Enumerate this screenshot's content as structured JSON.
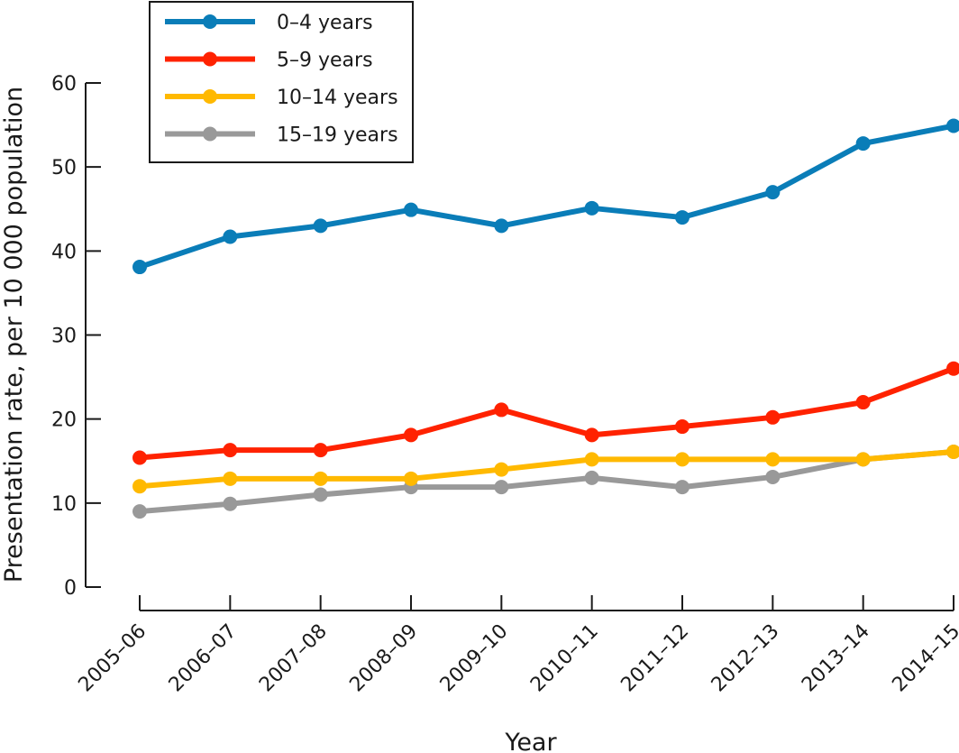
{
  "chart_data": {
    "type": "line",
    "title": "",
    "xlabel": "Year",
    "ylabel": "Presentation rate, per 10 000 population",
    "ylim": [
      0,
      60
    ],
    "yticks": [
      "0",
      "10",
      "20",
      "30",
      "40",
      "50",
      "60"
    ],
    "ytick_values": [
      0,
      10,
      20,
      30,
      40,
      50,
      60
    ],
    "grid": false,
    "legend_position": "top-left",
    "categories": [
      "2005–06",
      "2006–07",
      "2007–08",
      "2008–09",
      "2009–10",
      "2010–11",
      "2011–12",
      "2012–13",
      "2013–14",
      "2014–15"
    ],
    "series": [
      {
        "name": "0–4 years",
        "color": "#0a7db8",
        "values": [
          38.1,
          41.7,
          43.0,
          44.9,
          43.0,
          45.1,
          44.0,
          47.0,
          52.8,
          54.9
        ]
      },
      {
        "name": "5–9 years",
        "color": "#ff2200",
        "values": [
          15.4,
          16.3,
          16.3,
          18.1,
          21.1,
          18.1,
          19.1,
          20.2,
          22.0,
          26.0
        ]
      },
      {
        "name": "10–14 years",
        "color": "#ffb900",
        "values": [
          12.0,
          12.9,
          12.9,
          12.9,
          14.0,
          15.2,
          15.2,
          15.2,
          15.2,
          16.1
        ]
      },
      {
        "name": "15–19 years",
        "color": "#999999",
        "values": [
          9.0,
          9.9,
          11.0,
          11.9,
          11.9,
          13.0,
          11.9,
          13.1,
          15.2,
          16.1
        ]
      }
    ]
  }
}
